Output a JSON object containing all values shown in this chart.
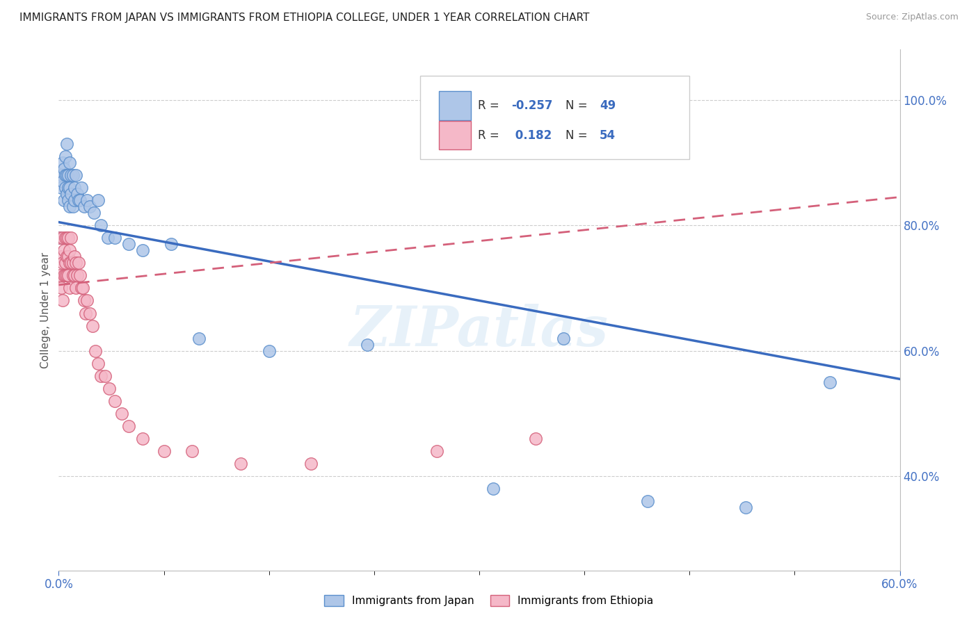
{
  "title": "IMMIGRANTS FROM JAPAN VS IMMIGRANTS FROM ETHIOPIA COLLEGE, UNDER 1 YEAR CORRELATION CHART",
  "source": "Source: ZipAtlas.com",
  "ylabel": "College, Under 1 year",
  "legend_label1": "Immigrants from Japan",
  "legend_label2": "Immigrants from Ethiopia",
  "R1": "-0.257",
  "N1": "49",
  "R2": "0.182",
  "N2": "54",
  "color_japan_fill": "#aec6e8",
  "color_japan_edge": "#5b8fcc",
  "color_ethiopia_fill": "#f5b8c8",
  "color_ethiopia_edge": "#d4607a",
  "line_color_japan": "#3a6bbf",
  "line_color_ethiopia": "#d4607a",
  "background_color": "#ffffff",
  "watermark": "ZIPatlas",
  "xmin": 0.0,
  "xmax": 0.6,
  "ymin": 0.25,
  "ymax": 1.08,
  "japan_x": [
    0.001,
    0.002,
    0.002,
    0.003,
    0.003,
    0.004,
    0.004,
    0.005,
    0.005,
    0.005,
    0.006,
    0.006,
    0.006,
    0.007,
    0.007,
    0.007,
    0.008,
    0.008,
    0.008,
    0.009,
    0.009,
    0.01,
    0.01,
    0.011,
    0.011,
    0.012,
    0.013,
    0.014,
    0.015,
    0.016,
    0.018,
    0.02,
    0.022,
    0.025,
    0.028,
    0.03,
    0.035,
    0.04,
    0.05,
    0.06,
    0.08,
    0.1,
    0.15,
    0.22,
    0.31,
    0.36,
    0.42,
    0.49,
    0.55
  ],
  "japan_y": [
    0.78,
    0.86,
    0.88,
    0.87,
    0.9,
    0.84,
    0.89,
    0.86,
    0.88,
    0.91,
    0.85,
    0.88,
    0.93,
    0.86,
    0.84,
    0.88,
    0.83,
    0.86,
    0.9,
    0.85,
    0.88,
    0.83,
    0.88,
    0.86,
    0.84,
    0.88,
    0.85,
    0.84,
    0.84,
    0.86,
    0.83,
    0.84,
    0.83,
    0.82,
    0.84,
    0.8,
    0.78,
    0.78,
    0.77,
    0.76,
    0.77,
    0.62,
    0.6,
    0.61,
    0.38,
    0.62,
    0.36,
    0.35,
    0.55
  ],
  "ethiopia_x": [
    0.001,
    0.001,
    0.002,
    0.002,
    0.003,
    0.003,
    0.003,
    0.004,
    0.004,
    0.005,
    0.005,
    0.005,
    0.006,
    0.006,
    0.006,
    0.007,
    0.007,
    0.007,
    0.008,
    0.008,
    0.008,
    0.009,
    0.009,
    0.01,
    0.01,
    0.011,
    0.011,
    0.012,
    0.012,
    0.013,
    0.014,
    0.015,
    0.016,
    0.017,
    0.018,
    0.019,
    0.02,
    0.022,
    0.024,
    0.026,
    0.028,
    0.03,
    0.033,
    0.036,
    0.04,
    0.045,
    0.05,
    0.06,
    0.075,
    0.095,
    0.13,
    0.18,
    0.27,
    0.34
  ],
  "ethiopia_y": [
    0.78,
    0.72,
    0.75,
    0.7,
    0.78,
    0.74,
    0.68,
    0.76,
    0.72,
    0.78,
    0.74,
    0.72,
    0.75,
    0.78,
    0.72,
    0.75,
    0.78,
    0.72,
    0.76,
    0.74,
    0.7,
    0.74,
    0.78,
    0.74,
    0.72,
    0.75,
    0.72,
    0.74,
    0.7,
    0.72,
    0.74,
    0.72,
    0.7,
    0.7,
    0.68,
    0.66,
    0.68,
    0.66,
    0.64,
    0.6,
    0.58,
    0.56,
    0.56,
    0.54,
    0.52,
    0.5,
    0.48,
    0.46,
    0.44,
    0.44,
    0.42,
    0.42,
    0.44,
    0.46
  ],
  "jp_line_x0": 0.0,
  "jp_line_y0": 0.805,
  "jp_line_x1": 0.6,
  "jp_line_y1": 0.555,
  "et_line_x0": 0.0,
  "et_line_y0": 0.705,
  "et_line_x1": 0.6,
  "et_line_y1": 0.845
}
